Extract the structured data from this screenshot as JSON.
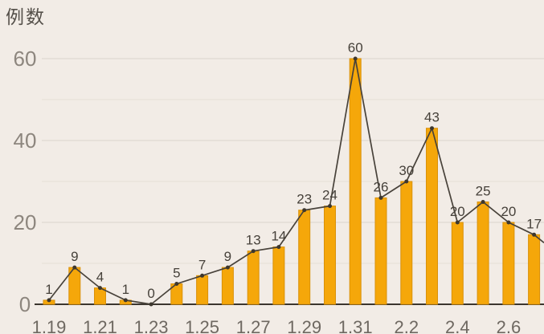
{
  "colors": {
    "background": "#f2ece6",
    "bar": "#f5a70a",
    "bar_edge": "#d9910a",
    "line": "#48423a",
    "marker": "#3d372e",
    "data_label": "#46413a",
    "ytick": "#8d867e",
    "xtick": "#6e6861",
    "grid_major": "#e0d9d1",
    "grid_minor": "#e9e2da",
    "axis": "#3c362f",
    "title": "#55504a"
  },
  "chart_data": {
    "type": "bar",
    "subtype": "bar-with-line-overlay",
    "title": "",
    "ylabel": "例数",
    "xlabel": "",
    "categories": [
      "1.19",
      "1.20",
      "1.21",
      "1.22",
      "1.23",
      "1.24",
      "1.25",
      "1.26",
      "1.27",
      "1.28",
      "1.29",
      "1.30",
      "1.31",
      "2.1",
      "2.2",
      "2.3",
      "2.4",
      "2.5",
      "2.6",
      "2.7"
    ],
    "values": [
      1,
      9,
      4,
      1,
      0,
      5,
      7,
      9,
      13,
      14,
      23,
      24,
      60,
      26,
      30,
      43,
      20,
      25,
      20,
      17
    ],
    "data_labels_shown": true,
    "x_tick_labels": [
      "1.19",
      "1.21",
      "1.23",
      "1.25",
      "1.27",
      "1.29",
      "1.31",
      "2.2",
      "2.4",
      "2.6"
    ],
    "x_tick_every": 2,
    "yticks": [
      0,
      20,
      40,
      60
    ],
    "ylim": [
      0,
      64
    ],
    "grid": "horizontal",
    "grid_interval": 10,
    "legend": "none",
    "line_extends_past_right_edge": true
  }
}
